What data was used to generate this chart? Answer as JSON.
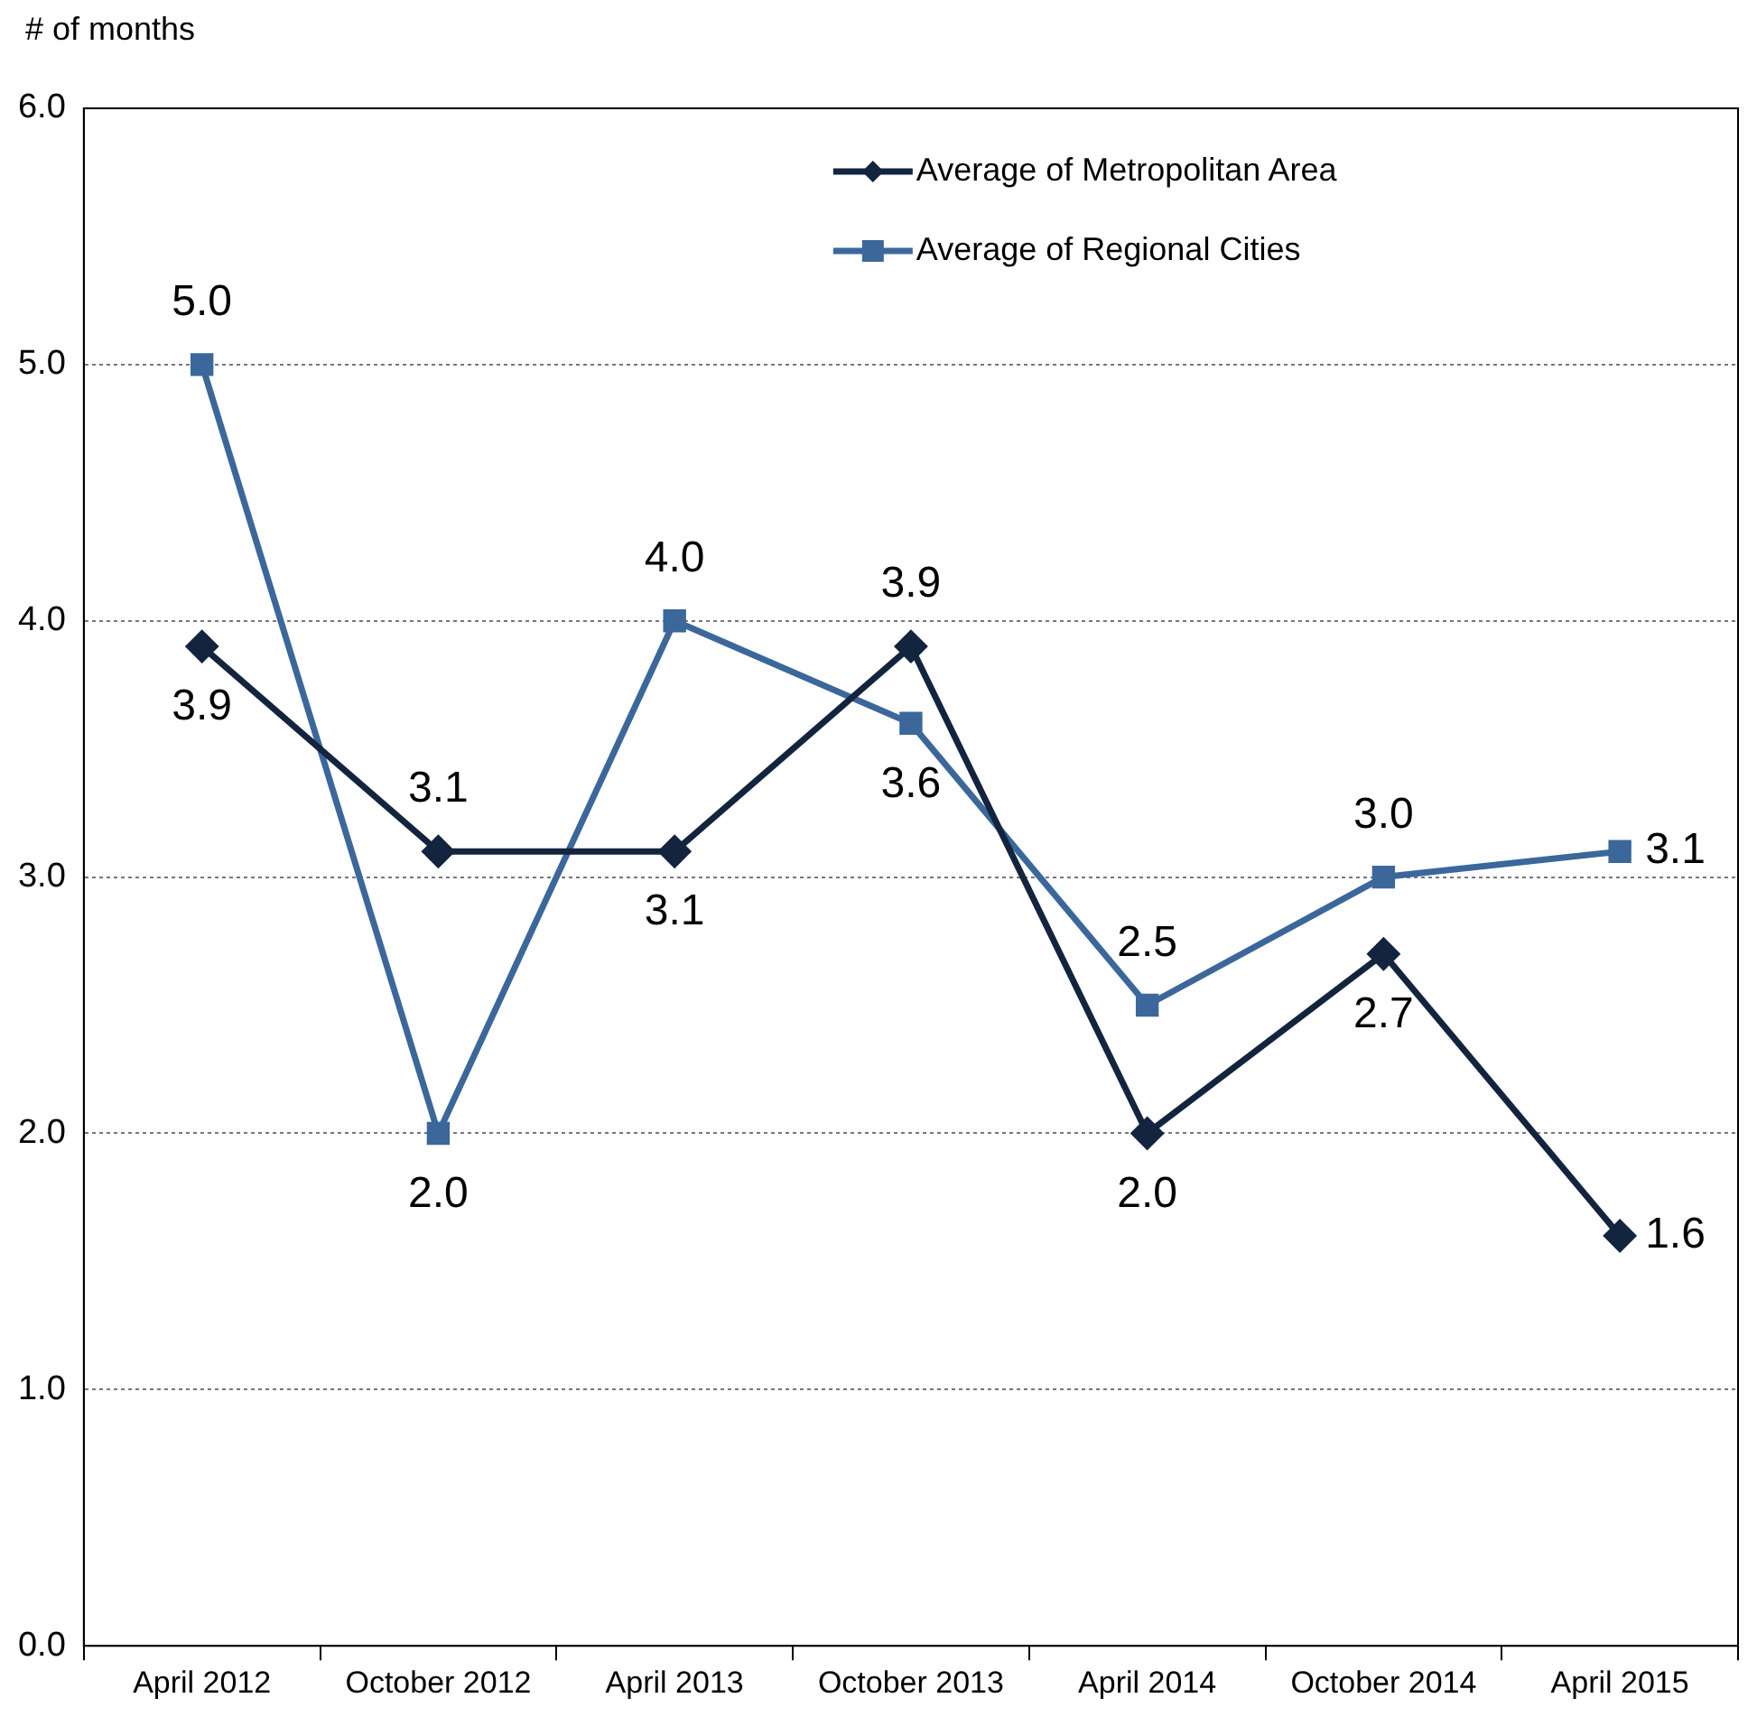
{
  "chart_data": {
    "type": "line",
    "ylabel": "# of months",
    "categories": [
      "April 2012",
      "October 2012",
      "April 2013",
      "October 2013",
      "April 2014",
      "October 2014",
      "April 2015"
    ],
    "series": [
      {
        "name": "Average of Metropolitan Area",
        "color": "#13243f",
        "marker": "diamond",
        "values": [
          3.9,
          3.1,
          3.1,
          3.9,
          2.0,
          2.7,
          1.6
        ],
        "value_labels": [
          "3.9",
          "3.1",
          "3.1",
          "3.9",
          "2.0",
          "2.7",
          "1.6"
        ]
      },
      {
        "name": "Average of Regional Cities",
        "color": "#3b679b",
        "marker": "square",
        "values": [
          5.0,
          2.0,
          4.0,
          3.6,
          2.5,
          3.0,
          3.1
        ],
        "value_labels": [
          "5.0",
          "2.0",
          "4.0",
          "3.6",
          "2.5",
          "3.0",
          "3.1"
        ]
      }
    ],
    "ylim": [
      0,
      6
    ],
    "yticks": [
      {
        "value": 0,
        "label": "0.0"
      },
      {
        "value": 1,
        "label": "1.0"
      },
      {
        "value": 2,
        "label": "2.0"
      },
      {
        "value": 3,
        "label": "3.0"
      },
      {
        "value": 4,
        "label": "4.0"
      },
      {
        "value": 5,
        "label": "5.0"
      },
      {
        "value": 6,
        "label": "6.0"
      }
    ],
    "grid": "y",
    "legend": "top right",
    "line_style": "solid"
  }
}
